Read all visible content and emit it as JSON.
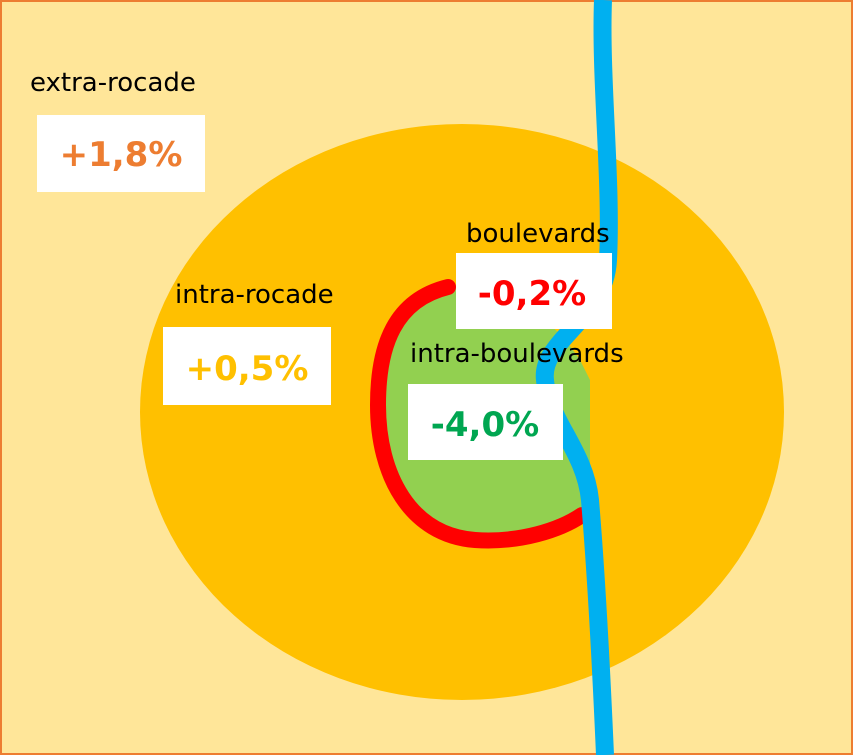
{
  "zones": [
    {
      "name": "extra-rocade",
      "change": "+1,8%"
    },
    {
      "name": "intra-rocade",
      "change": "+0,5%"
    },
    {
      "name": "boulevards",
      "change": "-0,2%"
    },
    {
      "name": "intra-boulevards",
      "change": "-4,0%"
    }
  ]
}
